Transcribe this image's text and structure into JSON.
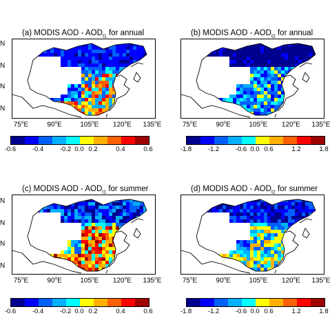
{
  "panels": [
    {
      "id": "a",
      "title_pre": "(a) MODIS AOD - AOD",
      "title_sub": "t1",
      "title_post": " for annual"
    },
    {
      "id": "b",
      "title_pre": "(b) MODIS AOD - AOD",
      "title_sub": "t2",
      "title_post": " for annual"
    },
    {
      "id": "c",
      "title_pre": "(c) MODIS AOD - AOD",
      "title_sub": "t1",
      "title_post": " for summer"
    },
    {
      "id": "d",
      "title_pre": "(d) MODIS AOD - AOD",
      "title_sub": "t2",
      "title_post": " for summer"
    }
  ],
  "lat_label": "N",
  "lon_labels": [
    {
      "num": "75",
      "deg": "o",
      "dir": "E"
    },
    {
      "num": "90",
      "deg": "o",
      "dir": "E"
    },
    {
      "num": "105",
      "deg": "o",
      "dir": "E"
    },
    {
      "num": "120",
      "deg": "o",
      "dir": "E"
    },
    {
      "num": "135",
      "deg": "o",
      "dir": "E"
    }
  ],
  "colorbar_t1": [
    "-0.6",
    "-0.4",
    "-0.2",
    "0.0",
    "0.2",
    "0.4",
    "0.6"
  ],
  "colorbar_t2": [
    "-1.8",
    "-1.2",
    "-0.6",
    "0.0",
    "0.6",
    "1.2",
    "1.8"
  ],
  "colors": [
    "#00008f",
    "#0000ff",
    "#0060ff",
    "#00b0ff",
    "#00ffff",
    "#ffff00",
    "#ffb000",
    "#ff6000",
    "#ff0000",
    "#a00000"
  ]
}
